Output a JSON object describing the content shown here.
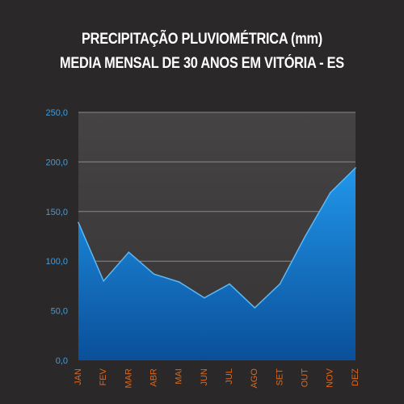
{
  "chart_data": {
    "type": "area",
    "title": "PRECIPITAÇÃO PLUVIOMÉTRICA (mm)",
    "subtitle": "MEDIA MENSAL DE 30 ANOS EM VITÓRIA - ES",
    "categories": [
      "JAN",
      "FEV",
      "MAR",
      "ABR",
      "MAI",
      "JUN",
      "JUL",
      "AGO",
      "SET",
      "OUT",
      "NOV",
      "DEZ"
    ],
    "values": [
      139,
      80,
      109,
      87,
      79,
      63,
      77,
      53,
      77,
      125,
      169,
      194
    ],
    "yticks": [
      "0,0",
      "50,0",
      "100,0",
      "150,0",
      "200,0",
      "250,0"
    ],
    "ylim": [
      0,
      250
    ],
    "grid": true,
    "legend": "none",
    "colors": {
      "area_top": "#1e90e6",
      "area_bottom": "#0b5aa8",
      "plot_bg": "#3d3b3b",
      "grid": "#8a8a8a",
      "ytick": "#3aa0e8",
      "xtick": "#e0661a"
    }
  }
}
